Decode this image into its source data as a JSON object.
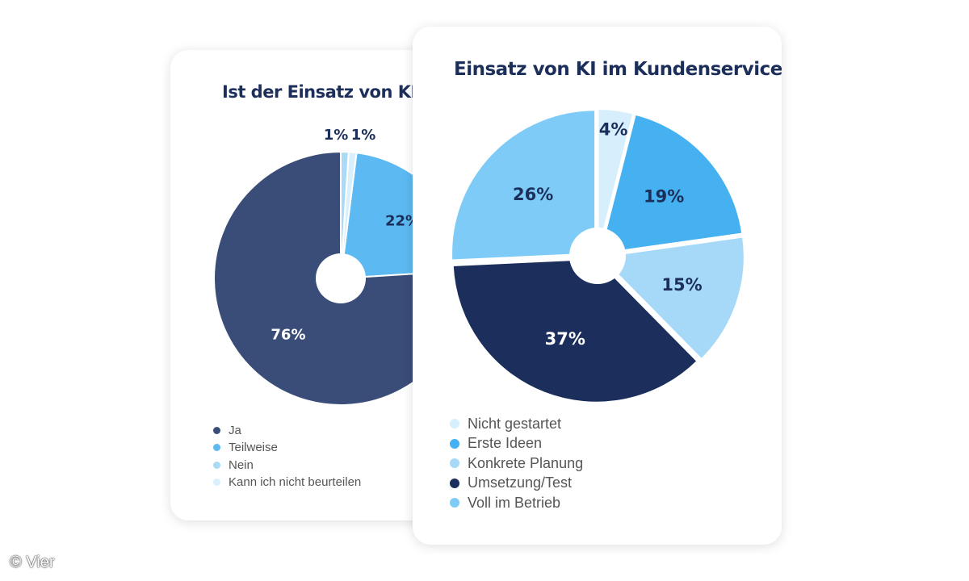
{
  "chart_data": [
    {
      "type": "pie",
      "title": "Ist der Einsatz von KI sin",
      "legend_placement": "bottom-left",
      "categories": [
        "Ja",
        "Teilweise",
        "Nein",
        "Kann ich nicht beurteilen"
      ],
      "values": [
        76,
        22,
        1,
        1
      ],
      "labels": [
        "76%",
        "22%",
        "1%",
        "1%"
      ],
      "colors": [
        "#3a4d78",
        "#5cb9f1",
        "#a9dbf7",
        "#d9effc"
      ]
    },
    {
      "type": "pie",
      "title": "Einsatz von KI im Kundenservice",
      "legend_placement": "bottom-left",
      "categories": [
        "Nicht gestartet",
        "Erste Ideen",
        "Konkrete Planung",
        "Umsetzung/Test",
        "Voll im Betrieb"
      ],
      "values": [
        4,
        19,
        15,
        37,
        26
      ],
      "labels": [
        "4%",
        "19%",
        "15%",
        "37%",
        "26%"
      ],
      "colors": [
        "#d7eefc",
        "#46b1f1",
        "#a6d9f8",
        "#1b2e5c",
        "#7fcbf7"
      ]
    }
  ],
  "watermark": "© Vier"
}
